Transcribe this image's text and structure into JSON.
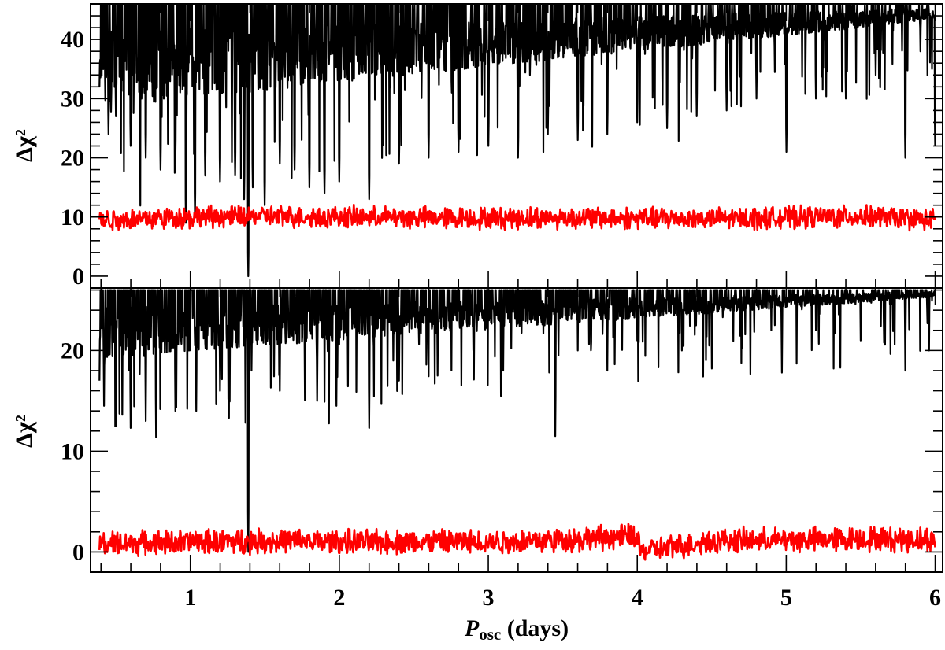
{
  "chart_data": [
    {
      "type": "line",
      "panel": "top",
      "xlim": [
        0.33,
        6.05
      ],
      "ylim": [
        -2,
        46
      ],
      "ylabel": "Δχ²",
      "xlabel": "",
      "yticks": [
        0,
        10,
        20,
        30,
        40
      ],
      "ytick_labels": [
        "0",
        "10",
        "20",
        "30",
        "40"
      ],
      "grid": false,
      "series": [
        {
          "color": "#000000",
          "style": "dense periodogram",
          "cap": 46,
          "baseline_start": 33,
          "baseline_end": 44,
          "dip_depth_start": 24,
          "dip_depth_end": 13,
          "x": [
            0.39,
            0.45,
            0.5,
            0.6,
            0.7,
            0.8,
            0.9,
            0.97,
            1.03,
            1.1,
            1.2,
            1.3,
            1.36,
            1.39,
            1.42,
            1.5,
            1.6,
            1.7,
            1.8,
            1.9,
            2.0,
            2.2,
            2.4,
            2.6,
            2.8,
            3.0,
            3.2,
            3.4,
            3.6,
            3.8,
            4.0,
            4.2,
            4.4,
            4.6,
            4.8,
            5.0,
            5.2,
            5.4,
            5.6,
            5.8,
            5.9,
            6.0
          ],
          "y": [
            32,
            24,
            27,
            22,
            20,
            18,
            19,
            9,
            10,
            17,
            16,
            17,
            13,
            0,
            15,
            12,
            19,
            18,
            15,
            14,
            16,
            13,
            19,
            20,
            21,
            22,
            20,
            24,
            23,
            24,
            26,
            25,
            27,
            28,
            30,
            21,
            30,
            30,
            34,
            20,
            38,
            22
          ]
        },
        {
          "color": "#ff0000",
          "style": "noise band",
          "mean": 9.9,
          "amplitude": 1.5,
          "x": [
            0.39,
            1.0,
            1.5,
            2.0,
            2.5,
            3.0,
            3.5,
            4.0,
            4.5,
            5.0,
            5.5,
            6.0
          ],
          "y": [
            9.5,
            10.0,
            10.1,
            10.0,
            9.9,
            9.8,
            9.9,
            9.8,
            9.7,
            9.9,
            10.1,
            9.5
          ]
        }
      ]
    },
    {
      "type": "line",
      "panel": "bottom",
      "xlim": [
        0.33,
        6.05
      ],
      "ylim": [
        -2,
        26.2
      ],
      "ylabel": "Δχ²",
      "xlabel": "Posc (days)",
      "xlabel_main": "P",
      "xlabel_sub": "osc",
      "xlabel_rest": " (days)",
      "xticks": [
        1,
        2,
        3,
        4,
        5,
        6
      ],
      "xtick_labels": [
        "1",
        "2",
        "3",
        "4",
        "5",
        "6"
      ],
      "yticks": [
        0,
        10,
        20
      ],
      "ytick_labels": [
        "0",
        "10",
        "20"
      ],
      "grid": false,
      "series": [
        {
          "color": "#000000",
          "style": "dense periodogram",
          "cap": 26,
          "baseline_start": 21,
          "baseline_end": 25.5,
          "dip_depth_start": 10,
          "dip_depth_end": 6,
          "x": [
            0.39,
            0.42,
            0.5,
            0.6,
            0.7,
            0.77,
            0.9,
            1.04,
            1.2,
            1.39,
            1.41,
            1.6,
            1.85,
            1.98,
            2.2,
            2.4,
            2.66,
            2.9,
            3.1,
            3.45,
            3.6,
            3.8,
            4.0,
            4.3,
            4.5,
            4.9,
            4.97,
            5.2,
            5.5,
            5.8,
            5.96,
            6.0
          ],
          "y": [
            17,
            14.5,
            12.5,
            12.3,
            13,
            11.4,
            14,
            14,
            16,
            0,
            18,
            16,
            15,
            14.5,
            12.3,
            17,
            17.5,
            20,
            18,
            11.5,
            20,
            18,
            21,
            20,
            18.2,
            22,
            17.8,
            22,
            21,
            18,
            20,
            25.5
          ]
        },
        {
          "color": "#ff0000",
          "style": "noise band",
          "mean": 1.0,
          "amplitude": 1.0,
          "x": [
            0.39,
            1.0,
            1.5,
            2.0,
            2.5,
            3.0,
            3.5,
            4.0,
            4.02,
            4.5,
            5.0,
            5.5,
            6.0
          ],
          "y": [
            0.8,
            1.0,
            1.1,
            1.0,
            1.0,
            1.0,
            1.2,
            1.6,
            0.0,
            1.1,
            1.2,
            1.3,
            1.2
          ]
        }
      ]
    }
  ]
}
